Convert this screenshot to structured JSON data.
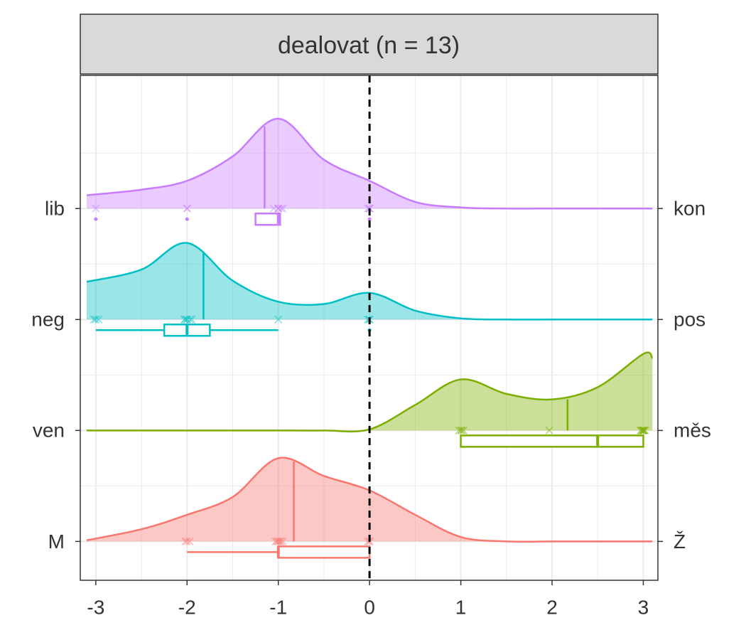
{
  "chart_data": {
    "type": "ridgeline",
    "title": "dealovat (n = 13)",
    "xlim": [
      -3.17,
      3.16
    ],
    "xticks": [
      -3,
      -2,
      -1,
      0,
      1,
      2,
      3
    ],
    "ylim": [
      0.65,
      5.2
    ],
    "vline": 0,
    "grid": true,
    "density_x": [
      -3.1,
      -2.5,
      -2,
      -1.5,
      -1,
      -0.5,
      0,
      0.5,
      1,
      1.5,
      2,
      2.5,
      3,
      3.1
    ],
    "series": [
      {
        "name": "lib",
        "right_label": "kon",
        "color": "#C77CFF",
        "density": [
          0.12,
          0.17,
          0.25,
          0.47,
          0.81,
          0.44,
          0.25,
          0.06,
          0.01,
          0,
          0,
          0,
          0,
          0
        ],
        "median_line": -1.15,
        "median_height": 0.74,
        "points": [
          -3,
          -2,
          -2,
          -1.05,
          -1,
          -1,
          -1,
          -0.97,
          -0.95,
          0,
          0,
          0,
          -0.02
        ],
        "box": {
          "whisker_low": -1.25,
          "q1": -1.25,
          "median": -1,
          "q3": -0.98,
          "whisker_high": -0.98
        },
        "outliers": [
          -3,
          -2,
          0
        ]
      },
      {
        "name": "neg",
        "right_label": "pos",
        "color": "#00BFC4",
        "density": [
          0.34,
          0.45,
          0.69,
          0.35,
          0.16,
          0.14,
          0.24,
          0.08,
          0.01,
          0,
          0,
          0,
          0,
          0
        ],
        "median_line": -1.82,
        "median_height": 0.61,
        "points": [
          -3,
          -2.97,
          -2.03,
          -2,
          -2,
          -1.97,
          -1.95,
          -1,
          0,
          0,
          -0.02,
          -2.02,
          -3.02
        ],
        "box": {
          "whisker_low": -3,
          "q1": -2.25,
          "median": -2,
          "q3": -1.75,
          "whisker_high": -1
        },
        "outliers": [
          0
        ]
      },
      {
        "name": "ven",
        "right_label": "měs",
        "color": "#7CAE00",
        "density": [
          0,
          0,
          0,
          0,
          0,
          0,
          0.01,
          0.23,
          0.46,
          0.33,
          0.28,
          0.39,
          0.69,
          0.65
        ],
        "median_line": 2.17,
        "median_height": 0.28,
        "points": [
          1,
          1.03,
          0.98,
          1.97,
          2.98,
          3,
          3,
          3.02,
          2.97,
          3.01,
          1.01,
          2.99,
          3
        ],
        "box": {
          "whisker_low": 1,
          "q1": 1,
          "median": 2.5,
          "q3": 3,
          "whisker_high": 3
        },
        "outliers": []
      },
      {
        "name": "M",
        "right_label": "Ž",
        "color": "#F8766D",
        "density": [
          0.01,
          0.11,
          0.24,
          0.4,
          0.75,
          0.59,
          0.46,
          0.24,
          0.04,
          0,
          0,
          0,
          0,
          0
        ],
        "median_line": -0.83,
        "median_height": 0.72,
        "points": [
          -2,
          -1.97,
          -1.02,
          -1,
          -0.98,
          -0.95,
          -1.03,
          0,
          -0.02,
          -1,
          -0.97,
          -2.02,
          0
        ],
        "box": {
          "whisker_low": -2,
          "q1": -1,
          "median": -1,
          "q3": 0,
          "whisker_high": 0
        },
        "outliers": []
      }
    ]
  }
}
